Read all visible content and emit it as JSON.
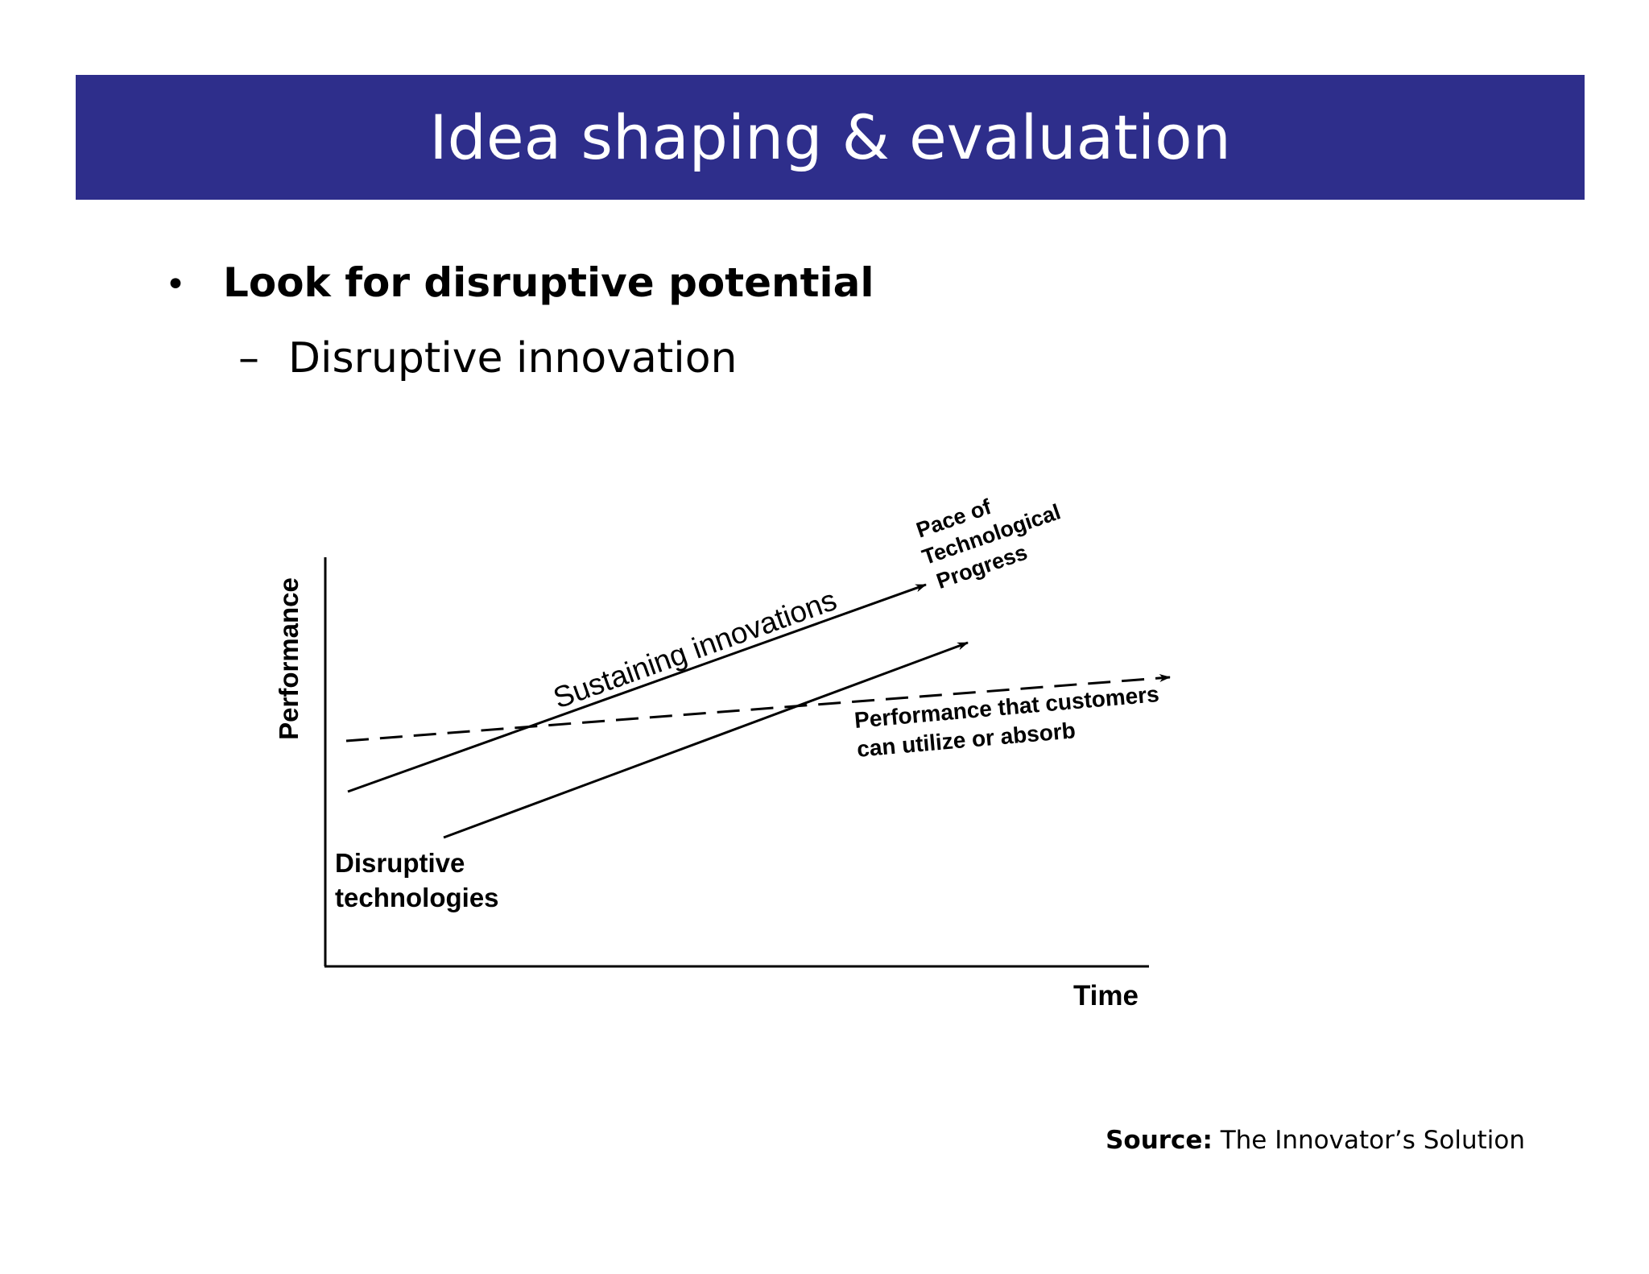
{
  "slide": {
    "title": "Idea shaping & evaluation",
    "bullet_marker": "•",
    "bullet": "Look for disruptive potential",
    "sub_marker": "–",
    "subbullet": "Disruptive innovation"
  },
  "diagram": {
    "y_axis_label": "Performance",
    "x_axis_label": "Time",
    "sustaining_label": "Sustaining innovations",
    "pace_label_1": "Pace of",
    "pace_label_2": "Technological",
    "pace_label_3": "Progress",
    "customer_label_1": "Performance that customers",
    "customer_label_2": "can utilize or absorb",
    "disruptive_label_1": "Disruptive",
    "disruptive_label_2": "technologies"
  },
  "source": {
    "label": "Source:",
    "text": "The Innovator’s Solution"
  },
  "colors": {
    "title_bar": "#2e2e8b",
    "title_text": "#ffffff",
    "line": "#000000"
  }
}
